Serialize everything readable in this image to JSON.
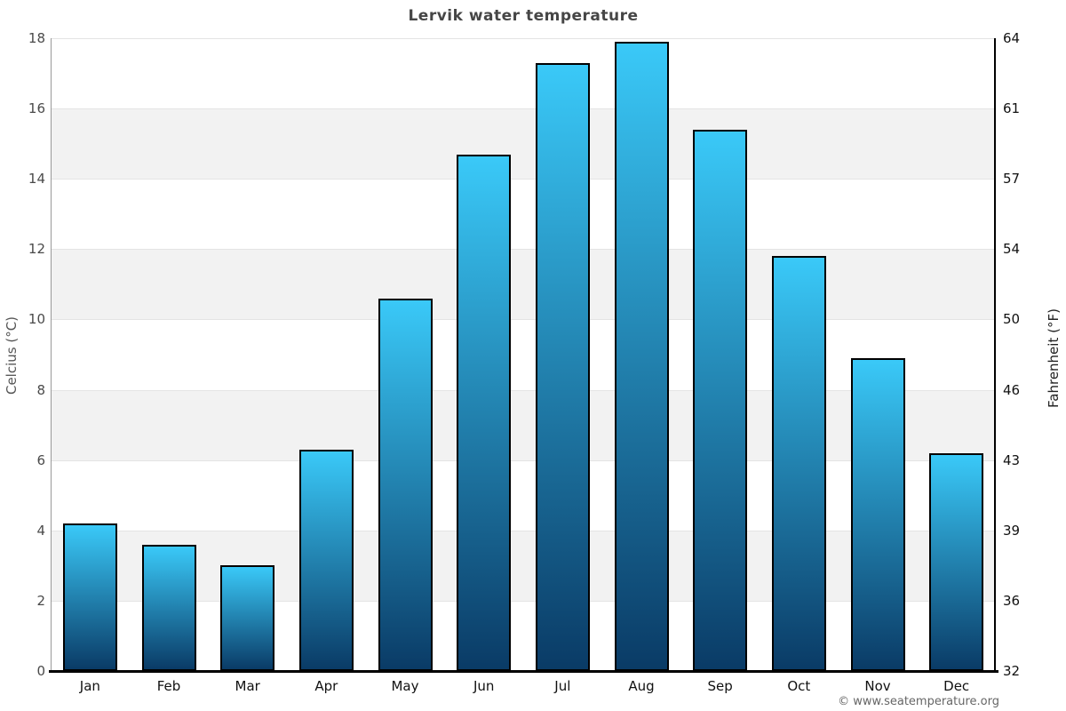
{
  "chart_data": {
    "type": "bar",
    "title": "Lervik water temperature",
    "categories": [
      "Jan",
      "Feb",
      "Mar",
      "Apr",
      "May",
      "Jun",
      "Jul",
      "Aug",
      "Sep",
      "Oct",
      "Nov",
      "Dec"
    ],
    "values": [
      4.2,
      3.6,
      3.0,
      6.3,
      10.6,
      14.7,
      17.3,
      17.9,
      15.4,
      11.8,
      8.9,
      6.2
    ],
    "ylabel_left": "Celcius (°C)",
    "ylabel_right": "Fahrenheit (°F)",
    "y_left_ticks": [
      "0",
      "2",
      "4",
      "6",
      "8",
      "10",
      "12",
      "14",
      "16",
      "18"
    ],
    "y_right_ticks": [
      "32",
      "36",
      "39",
      "43",
      "46",
      "50",
      "54",
      "57",
      "61",
      "64"
    ],
    "ylim": [
      0,
      18
    ],
    "gray_band_lower_bounds": [
      2,
      6,
      10,
      14
    ],
    "legend": "none",
    "copyright": "© www.seatemperature.org",
    "colors": {
      "bar_gradient_top": "#3ac9f8",
      "bar_gradient_bottom": "#0a3b66",
      "bar_border": "#000000",
      "band_gray": "#f2f2f2",
      "gridline": "#e4e4e4",
      "left_axis_line": "#999999",
      "right_axis_line": "#000000",
      "bottom_axis_line": "#000000",
      "title_color": "#464646",
      "left_tick_color": "#4a4a4a",
      "right_tick_color": "#111111",
      "month_label_color": "#111111",
      "copyright_color": "#666666"
    }
  }
}
